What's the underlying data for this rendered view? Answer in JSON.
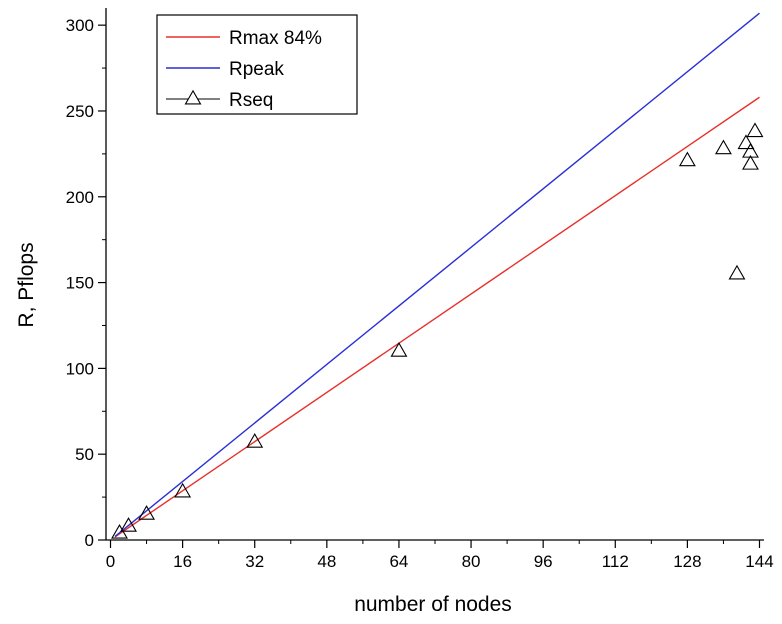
{
  "chart_data": {
    "type": "scatter",
    "title": "",
    "xlabel": "number of nodes",
    "ylabel": "R, Pflops",
    "xlim": [
      -1,
      145
    ],
    "ylim": [
      0,
      310
    ],
    "xticks": [
      0,
      16,
      32,
      48,
      64,
      80,
      96,
      112,
      128,
      144
    ],
    "yticks": [
      0,
      50,
      100,
      150,
      200,
      250,
      300
    ],
    "x_minor_step": 8,
    "y_minor_step": 25,
    "grid": false,
    "legend_position": "top-left",
    "series": [
      {
        "name": "Rmax 84%",
        "kind": "line",
        "color": "#e8302b",
        "x": [
          1,
          144
        ],
        "y": [
          1.8,
          258
        ]
      },
      {
        "name": "Rpeak",
        "kind": "line",
        "color": "#2a2fd4",
        "x": [
          1,
          144
        ],
        "y": [
          2.1,
          307
        ]
      },
      {
        "name": "Rseq",
        "kind": "markers",
        "marker": "triangle-open",
        "color": "#000000",
        "x": [
          2,
          4,
          8,
          16,
          32,
          64,
          128,
          136,
          139,
          141,
          142,
          142,
          143
        ],
        "y": [
          4,
          8,
          15,
          28,
          57,
          110,
          221,
          228,
          155,
          231,
          219,
          226,
          238
        ]
      }
    ]
  }
}
